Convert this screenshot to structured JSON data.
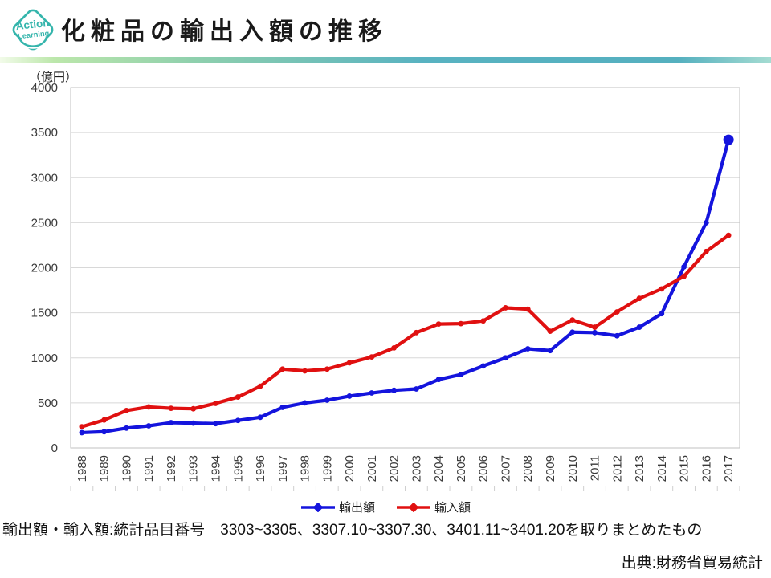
{
  "header": {
    "title": "化粧品の輸出入額の推移",
    "logo": {
      "line1": "Action",
      "line2": "Learning"
    }
  },
  "footnotes": {
    "codes_note": "輸出額・輸入額:統計品目番号　3303~3305、3307.10~3307.30、3401.11~3401.20を取りまとめたもの",
    "source": "出典:財務省貿易統計"
  },
  "chart_data": {
    "type": "line",
    "unit_label": "（億円）",
    "categories": [
      "1988",
      "1989",
      "1990",
      "1991",
      "1992",
      "1993",
      "1994",
      "1995",
      "1996",
      "1997",
      "1998",
      "1999",
      "2000",
      "2001",
      "2002",
      "2003",
      "2004",
      "2005",
      "2006",
      "2007",
      "2008",
      "2009",
      "2010",
      "2011",
      "2012",
      "2013",
      "2014",
      "2015",
      "2016",
      "2017"
    ],
    "series": [
      {
        "name": "輸出額",
        "color": "#1414dd",
        "emphasize_last": true,
        "values": [
          170,
          180,
          220,
          245,
          280,
          275,
          270,
          305,
          340,
          450,
          500,
          530,
          575,
          610,
          640,
          655,
          760,
          815,
          910,
          1000,
          1100,
          1080,
          1285,
          1280,
          1245,
          1340,
          1490,
          2010,
          2500,
          3420
        ]
      },
      {
        "name": "輸入額",
        "color": "#e01010",
        "emphasize_last": false,
        "values": [
          235,
          310,
          415,
          455,
          440,
          435,
          495,
          565,
          685,
          875,
          855,
          875,
          945,
          1010,
          1110,
          1280,
          1375,
          1380,
          1410,
          1555,
          1540,
          1295,
          1420,
          1340,
          1510,
          1660,
          1765,
          1905,
          2180,
          2360
        ]
      }
    ],
    "ylim": [
      0,
      4000
    ],
    "yticks": [
      0,
      500,
      1000,
      1500,
      2000,
      2500,
      3000,
      3500,
      4000
    ],
    "grid": true,
    "legend_position": "bottom",
    "x_tick_label_rotation": 90
  },
  "colors": {
    "accent_teal": "#35b5ac",
    "gridline": "#d8d8d8",
    "plot_border": "#c2c2c2",
    "tick_text": "#3a3a3a"
  }
}
